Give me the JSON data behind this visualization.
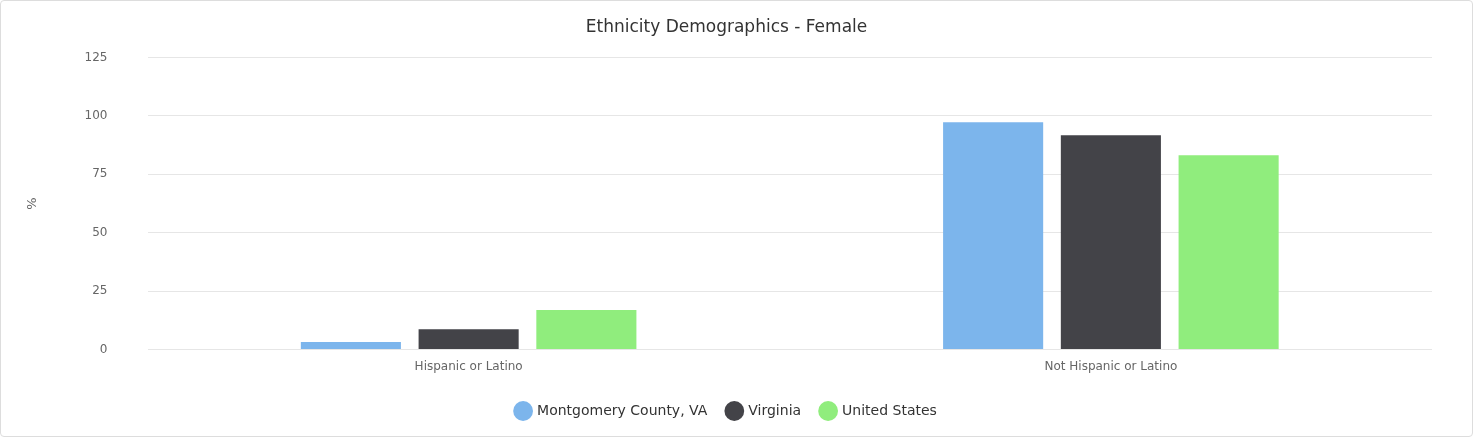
{
  "chart_data": {
    "type": "bar",
    "title": "Ethnicity Demographics - Female",
    "ylabel": "%",
    "categories": [
      "Hispanic or Latino",
      "Not Hispanic or Latino"
    ],
    "series": [
      {
        "name": "Montgomery County, VA",
        "color": "#7cb5ec",
        "values": [
          3.2,
          97.3
        ]
      },
      {
        "name": "Virginia",
        "color": "#434348",
        "values": [
          8.7,
          91.7
        ]
      },
      {
        "name": "United States",
        "color": "#90ed7d",
        "values": [
          16.9,
          83.1
        ]
      }
    ],
    "ylim": [
      0,
      125
    ],
    "yticks": [
      0,
      25,
      50,
      75,
      100,
      125
    ],
    "grid": "y",
    "legend": "bottom"
  }
}
